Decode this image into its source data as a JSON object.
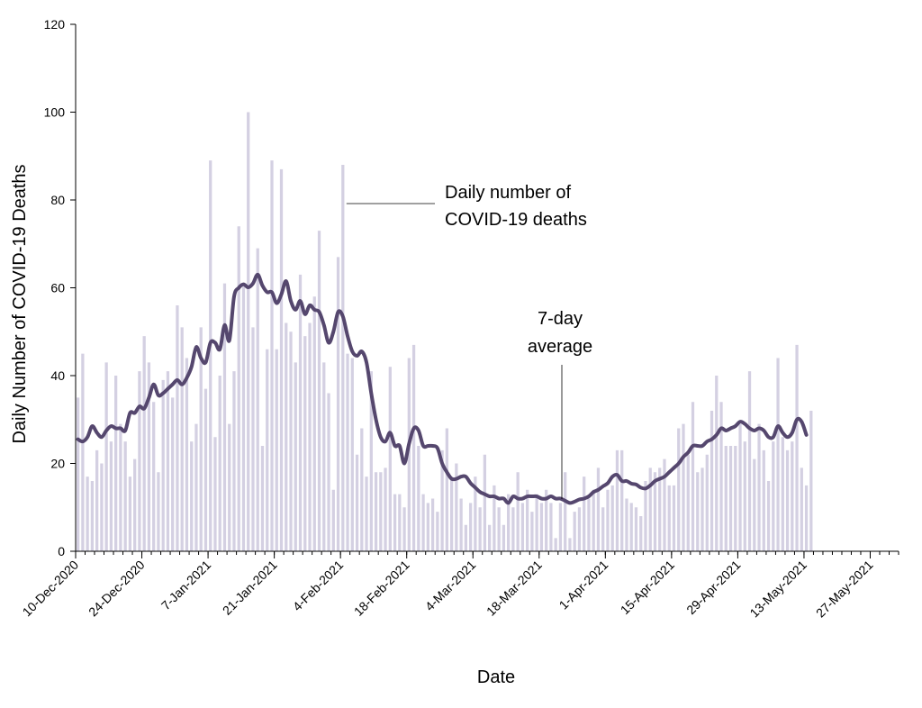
{
  "chart_data": {
    "type": "bar",
    "x_type": "date",
    "ylabel": "Daily Number of COVID-19 Deaths",
    "xlabel": "Date",
    "ylim": [
      0,
      120
    ],
    "yticks": [
      0,
      20,
      40,
      60,
      80,
      100,
      120
    ],
    "xlim": [
      "2020-12-10",
      "2021-06-02"
    ],
    "xtick_labels": [
      "10-Dec-2020",
      "24-Dec-2020",
      "7-Jan-2021",
      "21-Jan-2021",
      "4-Feb-2021",
      "18-Feb-2021",
      "4-Mar-2021",
      "18-Mar-2021",
      "1-Apr-2021",
      "15-Apr-2021",
      "29-Apr-2021",
      "13-May-2021",
      "27-May-2021"
    ],
    "xtick_dates": [
      "2020-12-10",
      "2020-12-24",
      "2021-01-07",
      "2021-01-21",
      "2021-02-04",
      "2021-02-18",
      "2021-03-04",
      "2021-03-18",
      "2021-04-01",
      "2021-04-15",
      "2021-04-29",
      "2021-05-13",
      "2021-05-27"
    ],
    "grid": false,
    "series": [
      {
        "name": "Daily number of COVID-19 deaths",
        "kind": "bar",
        "start_date": "2020-12-10",
        "values": [
          35,
          45,
          17,
          16,
          23,
          20,
          43,
          25,
          40,
          29,
          25,
          17,
          21,
          41,
          49,
          43,
          34,
          18,
          39,
          41,
          35,
          56,
          51,
          44,
          25,
          29,
          51,
          37,
          89,
          26,
          40,
          61,
          29,
          41,
          74,
          61,
          100,
          51,
          69,
          24,
          46,
          89,
          46,
          87,
          52,
          50,
          43,
          63,
          49,
          52,
          58,
          73,
          43,
          36,
          14,
          67,
          88,
          45,
          44,
          22,
          28,
          17,
          41,
          18,
          18,
          19,
          42,
          13,
          13,
          10,
          44,
          47,
          24,
          13,
          11,
          12,
          9,
          23,
          28,
          17,
          20,
          12,
          6,
          11,
          17,
          10,
          22,
          6,
          15,
          10,
          6,
          13,
          10,
          18,
          11,
          14,
          9,
          13,
          11,
          14,
          11,
          3,
          11,
          18,
          3,
          9,
          10,
          17,
          12,
          14,
          19,
          10,
          14,
          15,
          23,
          23,
          12,
          11,
          10,
          8,
          16,
          19,
          18,
          19,
          21,
          15,
          15,
          28,
          29,
          22,
          34,
          18,
          19,
          22,
          32,
          40,
          34,
          24,
          24,
          24,
          29,
          25,
          41,
          21,
          29,
          23,
          16,
          25,
          44,
          26,
          23,
          25,
          47,
          19,
          15,
          32
        ]
      },
      {
        "name": "7-day average",
        "kind": "line",
        "start_date": "2020-12-10",
        "values": [
          25.5,
          25,
          26,
          28.5,
          27,
          26,
          27.5,
          28.5,
          28,
          28,
          27.5,
          31.5,
          31.5,
          33,
          32.5,
          35,
          38,
          35.5,
          36,
          37,
          38,
          39,
          38,
          39.5,
          42,
          46.5,
          44,
          43,
          47.5,
          47.5,
          46,
          51.5,
          48,
          58,
          60,
          60.8,
          60.1,
          61,
          63,
          60.5,
          59,
          59,
          56.5,
          58.5,
          61.5,
          57,
          55,
          57,
          54,
          56,
          55,
          54.5,
          51.5,
          47.5,
          50,
          54.5,
          53.5,
          49,
          45.5,
          44.5,
          45.5,
          43,
          36,
          30,
          26,
          25,
          27,
          24,
          24,
          20,
          24.5,
          28,
          27.5,
          24,
          24,
          24,
          23.5,
          20,
          18,
          16.5,
          16.5,
          17,
          17,
          15.5,
          14.5,
          13.5,
          13,
          12.5,
          12.5,
          12,
          12,
          11,
          12.5,
          12,
          12,
          12.5,
          12.5,
          12.5,
          12,
          12,
          12.5,
          12,
          12,
          11.5,
          11,
          11.3,
          11.8,
          12,
          12.5,
          13.5,
          14,
          14.8,
          15.5,
          17,
          17.4,
          16,
          16,
          15.4,
          15.2,
          14.5,
          14.3,
          15,
          16,
          16.5,
          17,
          18,
          19,
          20,
          21.5,
          22.5,
          24,
          24,
          24,
          25,
          25.5,
          26.5,
          28,
          27.5,
          28,
          28.5,
          29.5,
          29,
          28,
          27.5,
          28,
          27.5,
          26,
          26,
          28.5,
          27,
          26,
          27,
          30,
          29.5,
          26.5
        ],
        "color": "#55476e"
      }
    ],
    "bar_color": "#d4d0e2",
    "annotations": [
      {
        "text_lines": [
          "Daily number of",
          "COVID-19 deaths"
        ],
        "points_to": "bars"
      },
      {
        "text_lines": [
          "7-day",
          "average"
        ],
        "points_to": "line"
      }
    ]
  }
}
